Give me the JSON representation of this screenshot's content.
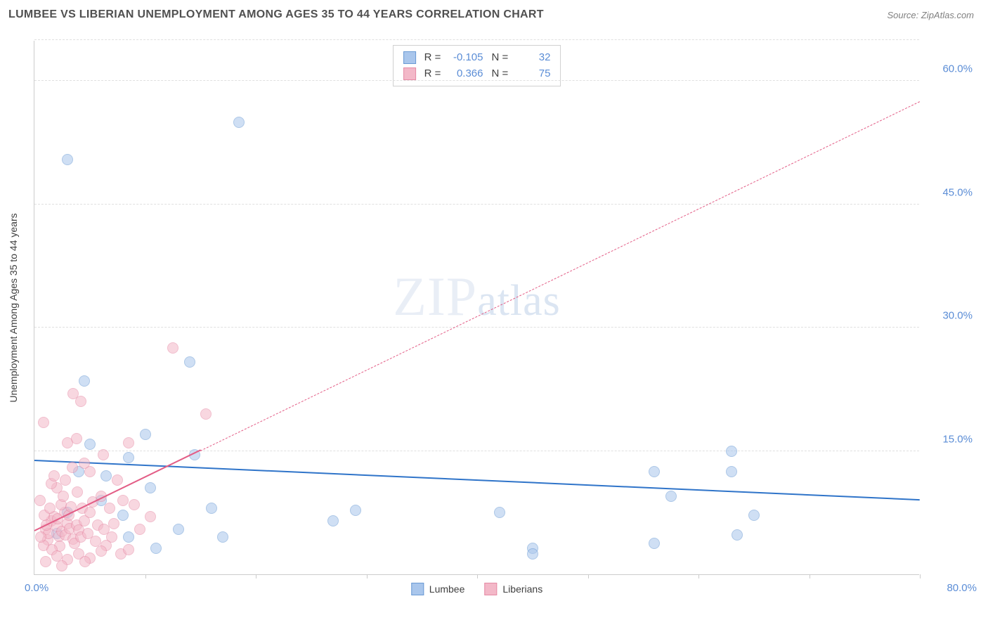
{
  "title": "LUMBEE VS LIBERIAN UNEMPLOYMENT AMONG AGES 35 TO 44 YEARS CORRELATION CHART",
  "source": "Source: ZipAtlas.com",
  "watermark_zip": "ZIP",
  "watermark_atlas": "atlas",
  "chart": {
    "type": "scatter",
    "yaxis_label": "Unemployment Among Ages 35 to 44 years",
    "xlim": [
      0,
      80
    ],
    "ylim": [
      0,
      65
    ],
    "x_min_label": "0.0%",
    "x_max_label": "80.0%",
    "y_gridlines": [
      15,
      30,
      45,
      60,
      65
    ],
    "y_tick_labels": {
      "15": "15.0%",
      "30": "30.0%",
      "45": "45.0%",
      "60": "60.0%"
    },
    "x_ticks": [
      10,
      20,
      30,
      40,
      50,
      60,
      70,
      80
    ],
    "grid_color": "#e0e0e0",
    "axis_color": "#cccccc",
    "tick_label_color": "#5b8dd6",
    "background_color": "#ffffff",
    "point_radius": 8,
    "point_opacity": 0.55,
    "series": [
      {
        "name": "Lumbee",
        "color_fill": "#a9c6ec",
        "color_stroke": "#6a9ad4",
        "R": "-0.105",
        "N": "32",
        "trend": {
          "y_at_x0": 13.8,
          "y_at_x80": 9.0,
          "solid_until_x": 80,
          "line_color": "#2f74c9"
        },
        "points": [
          [
            3,
            50.5
          ],
          [
            18.5,
            55
          ],
          [
            4.5,
            23.5
          ],
          [
            14,
            25.8
          ],
          [
            4,
            12.5
          ],
          [
            6.5,
            12
          ],
          [
            8.5,
            14.2
          ],
          [
            10,
            17
          ],
          [
            14.5,
            14.5
          ],
          [
            10.5,
            10.5
          ],
          [
            8,
            7.2
          ],
          [
            13,
            5.5
          ],
          [
            11,
            3.2
          ],
          [
            17,
            4.5
          ],
          [
            16,
            8
          ],
          [
            27,
            6.5
          ],
          [
            29,
            7.8
          ],
          [
            42,
            7.5
          ],
          [
            45,
            3.2
          ],
          [
            63,
            15
          ],
          [
            63,
            12.5
          ],
          [
            57.5,
            9.5
          ],
          [
            56,
            12.5
          ],
          [
            63.5,
            4.8
          ],
          [
            65,
            7.2
          ],
          [
            56,
            3.8
          ],
          [
            45,
            2.5
          ],
          [
            8.5,
            4.5
          ],
          [
            3,
            7.5
          ],
          [
            5,
            15.8
          ],
          [
            2,
            5
          ],
          [
            6,
            9
          ]
        ]
      },
      {
        "name": "Liberians",
        "color_fill": "#f3b8c8",
        "color_stroke": "#e68aa5",
        "R": "0.366",
        "N": "75",
        "trend": {
          "y_at_x0": 5.2,
          "y_at_x80": 57.5,
          "solid_until_x": 15,
          "line_color": "#e35d86"
        },
        "points": [
          [
            1,
            5.5
          ],
          [
            1.2,
            4.2
          ],
          [
            1.5,
            6.5
          ],
          [
            0.8,
            3.5
          ],
          [
            2,
            5.8
          ],
          [
            2.2,
            4.6
          ],
          [
            1.8,
            7
          ],
          [
            2.5,
            5.2
          ],
          [
            2.3,
            3.4
          ],
          [
            3,
            6.2
          ],
          [
            2.8,
            4.8
          ],
          [
            3.2,
            5.6
          ],
          [
            1.3,
            5
          ],
          [
            3.5,
            4.3
          ],
          [
            1.6,
            3
          ],
          [
            2.1,
            6.8
          ],
          [
            2.7,
            7.5
          ],
          [
            3.8,
            6
          ],
          [
            0.6,
            4.5
          ],
          [
            1.1,
            6
          ],
          [
            2.4,
            8.5
          ],
          [
            3.1,
            7.2
          ],
          [
            4,
            5.4
          ],
          [
            3.6,
            3.8
          ],
          [
            4.2,
            4.5
          ],
          [
            4.5,
            6.5
          ],
          [
            4.8,
            5
          ],
          [
            0.9,
            7.2
          ],
          [
            1.4,
            8
          ],
          [
            2.6,
            9.5
          ],
          [
            3.3,
            8.2
          ],
          [
            3.9,
            10
          ],
          [
            2,
            10.5
          ],
          [
            4.3,
            8
          ],
          [
            5,
            7.5
          ],
          [
            5.3,
            8.8
          ],
          [
            5.7,
            6
          ],
          [
            6,
            9.5
          ],
          [
            6.3,
            5.5
          ],
          [
            6.8,
            8
          ],
          [
            7,
            4.5
          ],
          [
            7.5,
            11.5
          ],
          [
            8,
            9
          ],
          [
            5,
            12.5
          ],
          [
            3,
            16
          ],
          [
            3.8,
            16.5
          ],
          [
            4.5,
            13.5
          ],
          [
            2.8,
            11.5
          ],
          [
            1.5,
            11
          ],
          [
            0.8,
            18.5
          ],
          [
            3.5,
            22
          ],
          [
            4.2,
            21
          ],
          [
            12.5,
            27.5
          ],
          [
            15.5,
            19.5
          ],
          [
            8.5,
            16
          ],
          [
            9,
            8.5
          ],
          [
            5.5,
            4
          ],
          [
            6.5,
            3.5
          ],
          [
            7.2,
            6.2
          ],
          [
            4,
            2.5
          ],
          [
            5,
            2
          ],
          [
            6,
            2.8
          ],
          [
            4.6,
            1.5
          ],
          [
            3,
            1.8
          ],
          [
            2,
            2.2
          ],
          [
            1,
            1.5
          ],
          [
            7.8,
            2.5
          ],
          [
            8.5,
            3
          ],
          [
            2.5,
            1
          ],
          [
            1.8,
            12
          ],
          [
            0.5,
            9
          ],
          [
            3.4,
            13
          ],
          [
            6.2,
            14.5
          ],
          [
            9.5,
            5.5
          ],
          [
            10.5,
            7
          ]
        ]
      }
    ],
    "stats_legend": {
      "r_label": "R =",
      "n_label": "N ="
    },
    "series_legend_title": ""
  }
}
